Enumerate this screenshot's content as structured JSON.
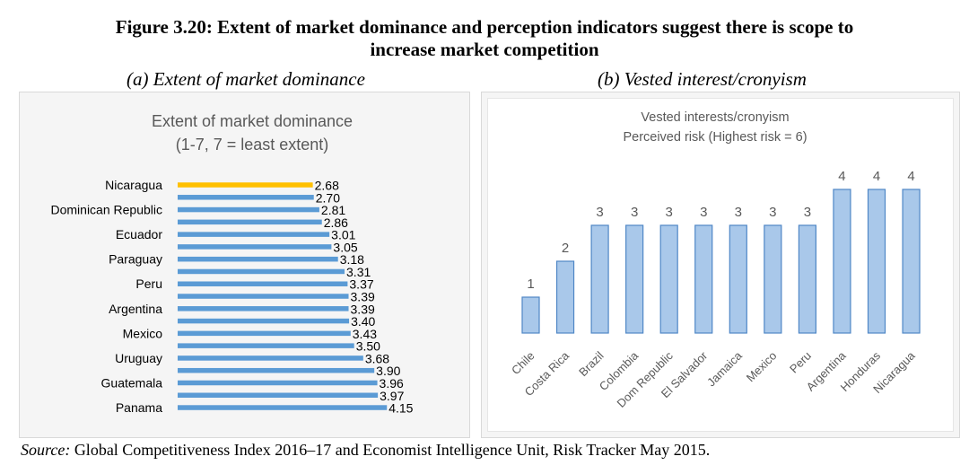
{
  "figure": {
    "title_line1": "Figure 3.20: Extent of market dominance and perception indicators suggest there is scope to",
    "title_line2": "increase market competition",
    "subtitle_a": "(a) Extent of market dominance",
    "subtitle_b": "(b) Vested interest/cronyism"
  },
  "source": {
    "label": "Source:",
    "text": "Global Competitiveness Index 2016–17 and Economist Intelligence Unit, Risk Tracker May 2015."
  },
  "colors": {
    "bar_blue": "#5b9bd5",
    "bar_highlight": "#ffc000",
    "bar_b_fill": "#a9c8ea",
    "bar_b_stroke": "#4f87c6",
    "text_gray": "#595959"
  },
  "chart_data": [
    {
      "type": "bar",
      "orientation": "horizontal",
      "title": "Extent of market dominance",
      "subtitle": "(1-7, 7 = least extent)",
      "categories": [
        "Nicaragua",
        "",
        "Dominican Republic",
        "",
        "Ecuador",
        "",
        "Paraguay",
        "",
        "Peru",
        "",
        "Argentina",
        "",
        "Mexico",
        "",
        "Uruguay",
        "",
        "Guatemala",
        "",
        "Panama"
      ],
      "values": [
        2.68,
        2.7,
        2.81,
        2.86,
        3.01,
        3.05,
        3.18,
        3.31,
        3.37,
        3.39,
        3.39,
        3.4,
        3.43,
        3.5,
        3.68,
        3.9,
        3.96,
        3.97,
        4.15
      ],
      "value_labels": [
        "2.68",
        "2.70",
        "2.81",
        "2.86",
        "3.01",
        "3.05",
        "3.18",
        "3.31",
        "3.37",
        "3.39",
        "3.39",
        "3.40",
        "3.43",
        "3.50",
        "3.68",
        "3.90",
        "3.96",
        "3.97",
        "4.15"
      ],
      "highlight_index": 0,
      "xlim": [
        0,
        4.6
      ],
      "grid": false,
      "legend": "none"
    },
    {
      "type": "bar",
      "orientation": "vertical",
      "title": "Vested interests/cronyism",
      "subtitle": "Perceived risk (Highest risk = 6)",
      "categories": [
        "Chile",
        "Costa Rica",
        "Brazil",
        "Colombia",
        "Dom Republic",
        "El Salvador",
        "Jamaica",
        "Mexico",
        "Peru",
        "Argentina",
        "Honduras",
        "Nicaragua"
      ],
      "values": [
        1,
        2,
        3,
        3,
        3,
        3,
        3,
        3,
        3,
        4,
        4,
        4
      ],
      "value_labels": [
        "1",
        "2",
        "3",
        "3",
        "3",
        "3",
        "3",
        "3",
        "3",
        "4",
        "4",
        "4"
      ],
      "ylim": [
        0,
        4.5
      ],
      "grid": false,
      "legend": "none"
    }
  ]
}
